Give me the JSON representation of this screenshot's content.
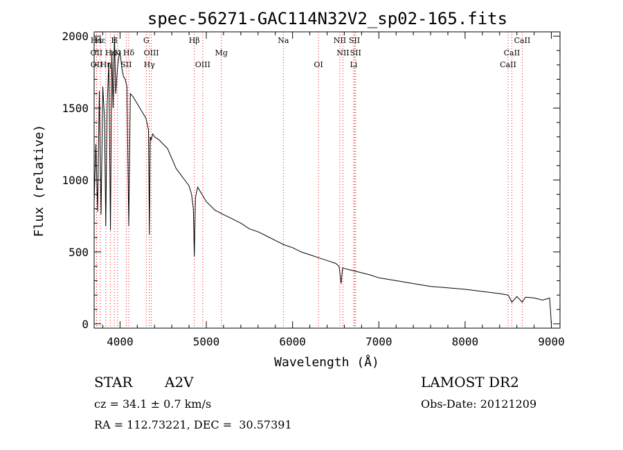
{
  "chart_data": {
    "type": "line",
    "title": "spec-56271-GAC114N32V2_sp02-165.fits",
    "xlabel": "Wavelength (Å)",
    "ylabel": "Flux (relative)",
    "xlim": [
      3700,
      9100
    ],
    "ylim": [
      -30,
      2030
    ],
    "x_ticks": [
      4000,
      5000,
      6000,
      7000,
      8000,
      9000
    ],
    "y_ticks": [
      0,
      500,
      1000,
      1500,
      2000
    ],
    "grid": false,
    "line_color": "#000000",
    "marker_color": "#ff0000",
    "series": [
      {
        "x": [
          3700,
          3720,
          3740,
          3760,
          3780,
          3800,
          3820,
          3835,
          3850,
          3870,
          3889,
          3905,
          3920,
          3935,
          3950,
          3970,
          3985,
          4000,
          4020,
          4040,
          4060,
          4080,
          4101,
          4120,
          4150,
          4200,
          4250,
          4300,
          4330,
          4340,
          4350,
          4360,
          4380,
          4400,
          4450,
          4500,
          4550,
          4600,
          4650,
          4700,
          4750,
          4800,
          4830,
          4850,
          4861,
          4875,
          4900,
          4950,
          5000,
          5100,
          5200,
          5300,
          5400,
          5500,
          5600,
          5700,
          5800,
          5900,
          6000,
          6100,
          6200,
          6300,
          6400,
          6500,
          6540,
          6563,
          6580,
          6600,
          6700,
          6800,
          6900,
          7000,
          7200,
          7400,
          7600,
          7800,
          8000,
          8200,
          8400,
          8500,
          8542,
          8600,
          8662,
          8700,
          8800,
          8900,
          8980,
          9000
        ],
        "y": [
          850,
          1250,
          780,
          1620,
          760,
          1650,
          1420,
          680,
          1500,
          1820,
          650,
          1900,
          1500,
          2000,
          1600,
          1780,
          1850,
          1900,
          1780,
          1720,
          1700,
          1650,
          680,
          1600,
          1580,
          1530,
          1480,
          1430,
          1350,
          620,
          1300,
          1280,
          1320,
          1300,
          1280,
          1250,
          1220,
          1150,
          1080,
          1040,
          1000,
          960,
          900,
          800,
          470,
          880,
          950,
          900,
          850,
          790,
          760,
          730,
          700,
          660,
          640,
          610,
          580,
          550,
          530,
          500,
          480,
          460,
          440,
          420,
          400,
          280,
          390,
          385,
          370,
          355,
          340,
          320,
          300,
          280,
          260,
          250,
          240,
          225,
          210,
          200,
          150,
          190,
          150,
          185,
          180,
          165,
          180,
          0
        ]
      }
    ],
    "lines": [
      {
        "label": "Hα",
        "x": 3727,
        "row": 1
      },
      {
        "label": "OII",
        "x": 3727,
        "row": 2
      },
      {
        "label": "OII",
        "x": 3729,
        "row": 3
      },
      {
        "label": "Hε",
        "x": 3770,
        "row": 1
      },
      {
        "label": "Hη",
        "x": 3835,
        "row": 3
      },
      {
        "label": "Hε",
        "x": 3889,
        "row": 2
      },
      {
        "label": "H",
        "x": 3934,
        "row": 1
      },
      {
        "label": "K",
        "x": 3970,
        "row": 2
      },
      {
        "label": "Hδ",
        "x": 4101,
        "row": 2
      },
      {
        "label": "SII",
        "x": 4072,
        "row": 3
      },
      {
        "label": "G",
        "x": 4305,
        "row": 1
      },
      {
        "label": "OIII",
        "x": 4363,
        "row": 2
      },
      {
        "label": "Hγ",
        "x": 4340,
        "row": 3
      },
      {
        "label": "Hβ",
        "x": 4861,
        "row": 1
      },
      {
        "label": "OIII",
        "x": 4959,
        "row": 3
      },
      {
        "label": "Mg",
        "x": 5175,
        "row": 2
      },
      {
        "label": "Na",
        "x": 5893,
        "row": 1
      },
      {
        "label": "OI",
        "x": 6300,
        "row": 3
      },
      {
        "label": "NII",
        "x": 6548,
        "row": 1
      },
      {
        "label": "NII",
        "x": 6584,
        "row": 2
      },
      {
        "label": "SII",
        "x": 6717,
        "row": 1
      },
      {
        "label": "SII",
        "x": 6731,
        "row": 2
      },
      {
        "label": "Li",
        "x": 6708,
        "row": 3
      },
      {
        "label": "CaII",
        "x": 8498,
        "row": 3
      },
      {
        "label": "CaII",
        "x": 8542,
        "row": 2
      },
      {
        "label": "CaII",
        "x": 8662,
        "row": 1
      }
    ]
  },
  "info": {
    "obj_class": "STAR",
    "subclass": "A2V",
    "survey": "LAMOST DR2",
    "cz": "cz = 34.1 ± 0.7 km/s",
    "obs_date": "Obs-Date: 20121209",
    "radec": "RA = 112.73221, DEC =  30.57391"
  }
}
